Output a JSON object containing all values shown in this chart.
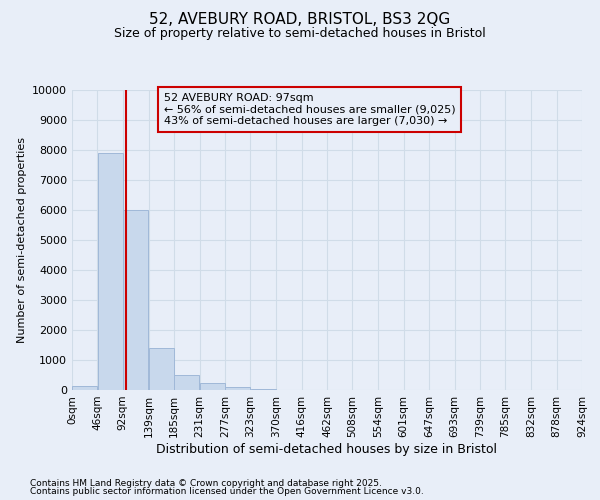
{
  "title": "52, AVEBURY ROAD, BRISTOL, BS3 2QG",
  "subtitle": "Size of property relative to semi-detached houses in Bristol",
  "xlabel": "Distribution of semi-detached houses by size in Bristol",
  "ylabel": "Number of semi-detached properties",
  "property_label": "52 AVEBURY ROAD: 97sqm",
  "annotation_smaller": "← 56% of semi-detached houses are smaller (9,025)",
  "annotation_larger": "43% of semi-detached houses are larger (7,030) →",
  "bin_edges": [
    0,
    46,
    92,
    139,
    185,
    231,
    277,
    323,
    370,
    416,
    462,
    508,
    554,
    601,
    647,
    693,
    739,
    785,
    832,
    878,
    924
  ],
  "bin_labels": [
    "0sqm",
    "46sqm",
    "92sqm",
    "139sqm",
    "185sqm",
    "231sqm",
    "277sqm",
    "323sqm",
    "370sqm",
    "416sqm",
    "462sqm",
    "508sqm",
    "554sqm",
    "601sqm",
    "647sqm",
    "693sqm",
    "739sqm",
    "785sqm",
    "832sqm",
    "878sqm",
    "924sqm"
  ],
  "bar_heights": [
    150,
    7900,
    6000,
    1400,
    500,
    220,
    100,
    50,
    0,
    0,
    0,
    0,
    0,
    0,
    0,
    0,
    0,
    0,
    0,
    0
  ],
  "bar_color": "#c8d8ec",
  "bar_edge_color": "#a0b8d8",
  "vline_color": "#cc0000",
  "vline_x": 97,
  "ylim": [
    0,
    10000
  ],
  "yticks": [
    0,
    1000,
    2000,
    3000,
    4000,
    5000,
    6000,
    7000,
    8000,
    9000,
    10000
  ],
  "annotation_box_color": "#cc0000",
  "grid_color": "#d0dce8",
  "background_color": "#e8eef8",
  "plot_bg_color": "#e8eef8",
  "footer_line1": "Contains HM Land Registry data © Crown copyright and database right 2025.",
  "footer_line2": "Contains public sector information licensed under the Open Government Licence v3.0."
}
